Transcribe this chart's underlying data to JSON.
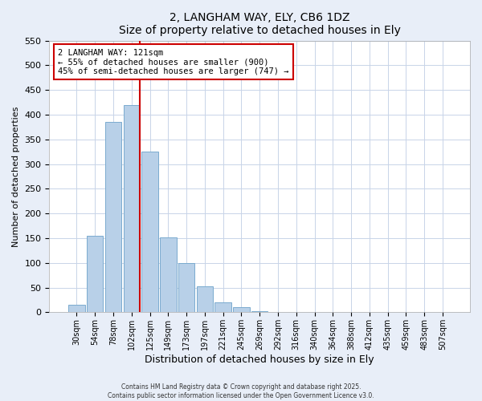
{
  "title": "2, LANGHAM WAY, ELY, CB6 1DZ",
  "subtitle": "Size of property relative to detached houses in Ely",
  "xlabel": "Distribution of detached houses by size in Ely",
  "ylabel": "Number of detached properties",
  "bar_labels": [
    "30sqm",
    "54sqm",
    "78sqm",
    "102sqm",
    "125sqm",
    "149sqm",
    "173sqm",
    "197sqm",
    "221sqm",
    "245sqm",
    "269sqm",
    "292sqm",
    "316sqm",
    "340sqm",
    "364sqm",
    "388sqm",
    "412sqm",
    "435sqm",
    "459sqm",
    "483sqm",
    "507sqm"
  ],
  "bar_values": [
    15,
    155,
    385,
    420,
    325,
    152,
    100,
    53,
    20,
    10,
    3,
    1,
    0,
    0,
    0,
    0,
    0,
    0,
    0,
    0,
    0
  ],
  "bar_color": "#b8d0e8",
  "bar_edge_color": "#7aabcf",
  "ylim": [
    0,
    550
  ],
  "yticks": [
    0,
    50,
    100,
    150,
    200,
    250,
    300,
    350,
    400,
    450,
    500,
    550
  ],
  "vline_color": "#cc0000",
  "annotation_title": "2 LANGHAM WAY: 121sqm",
  "annotation_line1": "← 55% of detached houses are smaller (900)",
  "annotation_line2": "45% of semi-detached houses are larger (747) →",
  "footer1": "Contains HM Land Registry data © Crown copyright and database right 2025.",
  "footer2": "Contains public sector information licensed under the Open Government Licence v3.0.",
  "bg_color": "#e8eef8",
  "plot_bg_color": "#ffffff",
  "grid_color": "#c8d4e8"
}
